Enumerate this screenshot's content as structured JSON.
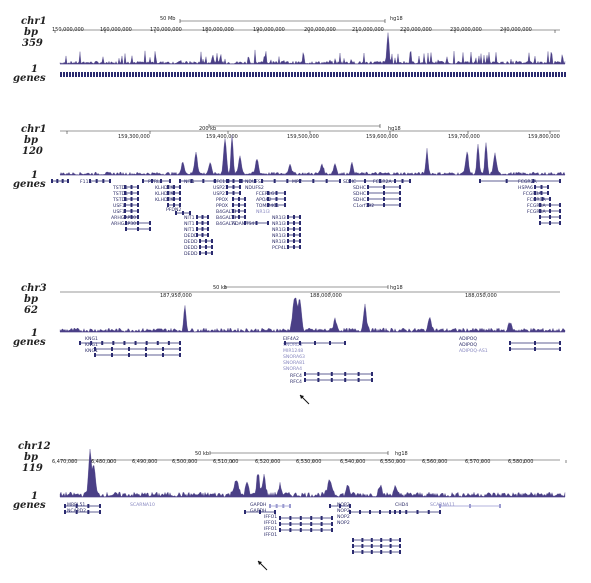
{
  "colors": {
    "signal": "#4a3f86",
    "track": "#2b2b70",
    "light": "#9a9ad0",
    "axis": "#333333"
  },
  "panels": [
    {
      "chrom": "chr1",
      "unit": "bp",
      "ymax": "359",
      "ymin": "1",
      "genes_label": "genes",
      "scale": "50 Mb",
      "assembly": "hg18",
      "ticks": [
        "150,000,000",
        "160,000,000",
        "170,000,000",
        "180,000,000",
        "190,000,000",
        "200,000,000",
        "210,000,000",
        "220,000,000",
        "230,000,000",
        "240,000,000"
      ],
      "genes": []
    },
    {
      "chrom": "chr1",
      "unit": "bp",
      "ymax": "120",
      "ymin": "1",
      "genes_label": "genes",
      "scale": "200 kb",
      "assembly": "hg18",
      "ticks": [
        "159,300,000",
        "159,400,000",
        "159,500,000",
        "159,600,000",
        "159,700,000",
        "159,800,000"
      ],
      "genes": [
        "F11R",
        "TSTD1",
        "TSTD1",
        "TSTD1",
        "USF1",
        "USF1",
        "ARHGAP30",
        "ARHGAP30",
        "PVRL4",
        "KLHDC9",
        "KLHDC9",
        "KLHDC9",
        "PFDN2",
        "NIT1",
        "NIT1",
        "NIT1",
        "NIT1",
        "DEDD",
        "DEDD",
        "DEDD",
        "DEDD",
        "UFC1",
        "USP21",
        "USP21",
        "PPOX",
        "PPOX",
        "B4GALT3",
        "B4GALT3",
        "B4GALT3",
        "ADAMTS4",
        "NDUFS2",
        "NDUFS2",
        "FCER1G",
        "APOA2",
        "TOMM40L",
        "NR1I3",
        "NR1I3",
        "NR1I3",
        "NR1I3",
        "NR1I3",
        "NR1I3",
        "PCP4L1",
        "MPZ",
        "SDHC",
        "SDHC",
        "SDHC",
        "SDHC",
        "C1orf192",
        "FCGR2A",
        "FCGR2A",
        "HSPA6",
        "FCGR3A",
        "FCGR3A",
        "FCGR3A",
        "FCGR3A"
      ]
    },
    {
      "chrom": "chr3",
      "unit": "bp",
      "ymax": "62",
      "ymin": "1",
      "genes_label": "genes",
      "scale": "50 kb",
      "assembly": "hg18",
      "ticks": [
        "187,950,000",
        "188,000,000",
        "188,050,000"
      ],
      "genes": [
        "KNG1",
        "KNG1",
        "KNG1",
        "EIF4A2",
        "SNORD2",
        "MIR1248",
        "SNORA63",
        "SNORA81",
        "SNORA4",
        "RFC4",
        "RFC4",
        "ADIPOQ",
        "ADIPOQ",
        "ADIPOQ-AS1"
      ]
    },
    {
      "chrom": "chr12",
      "unit": "bp",
      "ymax": "119",
      "ymin": "1",
      "genes_label": "genes",
      "scale": "50 kb",
      "assembly": "hg18",
      "ticks": [
        "6,470,000",
        "6,480,000",
        "6,490,000",
        "6,500,000",
        "6,510,000",
        "6,520,000",
        "6,530,000",
        "6,540,000",
        "6,550,000",
        "6,560,000",
        "6,570,000",
        "6,580,000"
      ],
      "genes": [
        "MRPL51",
        "NCAPD2",
        "SCARNA10",
        "GAPDH",
        "GAPDH",
        "IFFO1",
        "IFFO1",
        "IFFO1",
        "IFFO1",
        "NOP2",
        "NOP2",
        "NOP2",
        "NOP2",
        "CHD4",
        "SCARNA11"
      ]
    }
  ]
}
